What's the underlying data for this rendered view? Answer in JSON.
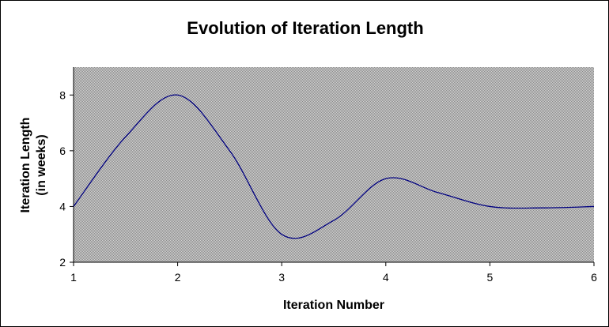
{
  "chart_data": {
    "type": "line",
    "title": "Evolution of Iteration Length",
    "xlabel": "Iteration Number",
    "ylabel_line1": "Iteration Length",
    "ylabel_line2": "(in weeks)",
    "xlim": [
      1,
      6
    ],
    "ylim": [
      2,
      9
    ],
    "xticks": [
      1,
      2,
      3,
      4,
      5,
      6
    ],
    "yticks": [
      2,
      4,
      6,
      8
    ],
    "grid": false,
    "plot_background": "#c0c0c0",
    "series": [
      {
        "color": "#000080",
        "smooth": true,
        "points": [
          [
            1,
            4
          ],
          [
            1.5,
            6.5
          ],
          [
            2,
            8
          ],
          [
            2.5,
            6
          ],
          [
            3,
            3
          ],
          [
            3.5,
            3.5
          ],
          [
            4,
            5
          ],
          [
            4.5,
            4.5
          ],
          [
            5,
            4
          ],
          [
            5.5,
            3.95
          ],
          [
            6,
            4
          ]
        ]
      }
    ]
  }
}
